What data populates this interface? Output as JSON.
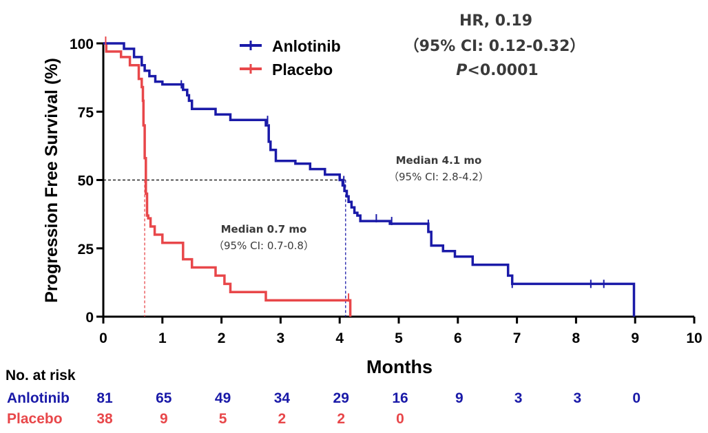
{
  "chart_data": {
    "type": "line",
    "subtype": "kaplan-meier",
    "ylabel": "Progression Free Survival (%)",
    "xlabel": "Months",
    "xlim": [
      0,
      10
    ],
    "ylim": [
      0,
      100
    ],
    "x_ticks": [
      0,
      1,
      2,
      3,
      4,
      5,
      6,
      7,
      8,
      9,
      10
    ],
    "y_ticks": [
      0,
      25,
      50,
      75,
      100
    ],
    "grid": false,
    "legend_position": "top-center",
    "series": [
      {
        "name": "Anlotinib",
        "color": "#1a1aa8",
        "x": [
          0,
          0.35,
          0.35,
          0.52,
          0.52,
          0.65,
          0.65,
          0.7,
          0.7,
          0.78,
          0.78,
          0.88,
          0.88,
          1.0,
          1.0,
          1.35,
          1.35,
          1.42,
          1.42,
          1.45,
          1.45,
          1.5,
          1.5,
          1.9,
          1.9,
          2.15,
          2.15,
          2.75,
          2.75,
          2.8,
          2.8,
          2.83,
          2.83,
          2.92,
          2.92,
          3.25,
          3.25,
          3.5,
          3.5,
          3.75,
          3.75,
          4.0,
          4.0,
          4.05,
          4.05,
          4.08,
          4.08,
          4.12,
          4.12,
          4.15,
          4.15,
          4.2,
          4.2,
          4.25,
          4.25,
          4.3,
          4.3,
          4.35,
          4.35,
          4.55,
          4.55,
          4.85,
          4.85,
          5.5,
          5.5,
          5.55,
          5.55,
          5.75,
          5.75,
          5.95,
          5.95,
          6.25,
          6.25,
          6.85,
          6.85,
          6.92,
          6.92,
          8.98,
          8.98
        ],
        "y": [
          100,
          100,
          98,
          98,
          95,
          95,
          92,
          92,
          90,
          90,
          88,
          88,
          86,
          86,
          85,
          85,
          83,
          83,
          81,
          81,
          79,
          79,
          76,
          76,
          74,
          74,
          72,
          72,
          70,
          70,
          64,
          64,
          61,
          61,
          57,
          57,
          56,
          56,
          54,
          54,
          52,
          52,
          50,
          50,
          48,
          48,
          46,
          46,
          44,
          44,
          42,
          42,
          40,
          40,
          38,
          38,
          37,
          37,
          35,
          35,
          35,
          35,
          34,
          34,
          31,
          31,
          26,
          26,
          24,
          24,
          22,
          22,
          19,
          19,
          15,
          15,
          12,
          12,
          0
        ],
        "censor_x": [
          1.32,
          2.78,
          4.07,
          4.62,
          4.88,
          5.5,
          6.92,
          8.25,
          8.47
        ],
        "censor_y": [
          85,
          72,
          50,
          36,
          35,
          34,
          12,
          12,
          12
        ],
        "number_at_risk": [
          81,
          65,
          49,
          34,
          29,
          16,
          9,
          3,
          3,
          0
        ],
        "median_months": 4.1,
        "median_label": "Median 4.1 mo",
        "median_ci": "（95% CI: 2.8-4.2）"
      },
      {
        "name": "Placebo",
        "color": "#e8474a",
        "x": [
          0,
          0.05,
          0.05,
          0.3,
          0.3,
          0.45,
          0.45,
          0.6,
          0.6,
          0.65,
          0.65,
          0.67,
          0.67,
          0.68,
          0.68,
          0.7,
          0.7,
          0.72,
          0.72,
          0.74,
          0.74,
          0.76,
          0.76,
          0.8,
          0.8,
          0.87,
          0.87,
          1.0,
          1.0,
          1.35,
          1.35,
          1.5,
          1.5,
          1.9,
          1.9,
          2.05,
          2.05,
          2.15,
          2.15,
          2.75,
          2.75,
          4.15,
          4.15,
          4.18,
          4.18
        ],
        "y": [
          100,
          100,
          97,
          97,
          95,
          95,
          92,
          92,
          87,
          87,
          84,
          84,
          79,
          79,
          70,
          70,
          58,
          58,
          45,
          45,
          37,
          37,
          36,
          36,
          33,
          33,
          30,
          30,
          27,
          27,
          21,
          21,
          18,
          18,
          15,
          15,
          12,
          12,
          9,
          9,
          6,
          6,
          6,
          6,
          0
        ],
        "censor_x": [
          0.04,
          4.15
        ],
        "censor_y": [
          101,
          7
        ],
        "number_at_risk": [
          38,
          9,
          5,
          2,
          2,
          0
        ],
        "median_months": 0.7,
        "median_label": "Median 0.7 mo",
        "median_ci": "（95% CI: 0.7-0.8）"
      }
    ],
    "annotations": {
      "hr": "HR, 0.19",
      "ci": "（95% CI: 0.12-0.32）",
      "p_italic": "P",
      "p_rest": "<0.0001"
    },
    "risk_table": {
      "title": "No. at risk",
      "times": [
        0,
        1,
        2,
        3,
        4,
        5,
        6,
        7,
        8,
        9
      ]
    }
  }
}
